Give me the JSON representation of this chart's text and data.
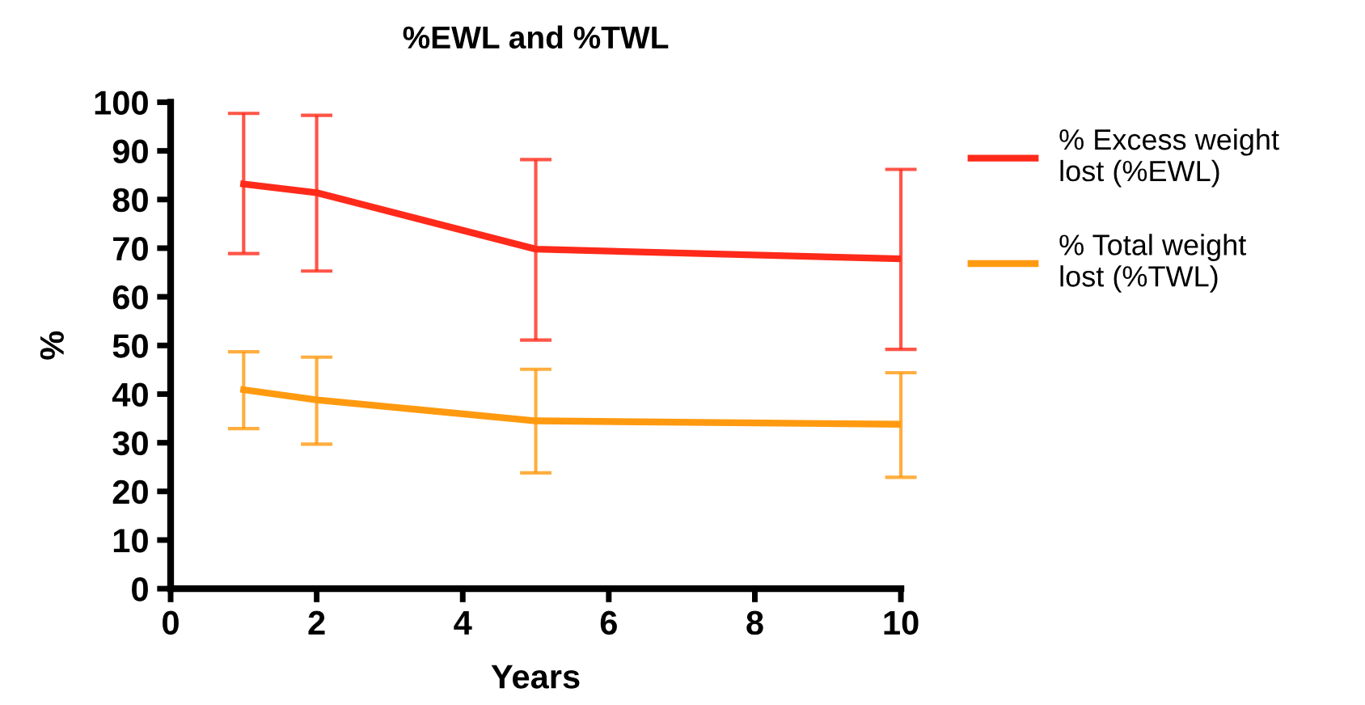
{
  "chart_data": {
    "type": "line",
    "title": "%EWL and %TWL",
    "xlabel": "Years",
    "ylabel": "%",
    "x": [
      1,
      2,
      5,
      10
    ],
    "series": [
      {
        "name": "% Excess weight\nlost (%EWL)",
        "color": "#ff2a1a",
        "values": [
          83.2,
          81.4,
          69.8,
          67.8
        ],
        "errors": [
          [
            68.9,
            97.7
          ],
          [
            65.3,
            97.3
          ],
          [
            51.1,
            88.2
          ],
          [
            49.2,
            86.2
          ]
        ]
      },
      {
        "name": "% Total weight\nlost (%TWL)",
        "color": "#ff9a10",
        "values": [
          40.9,
          38.8,
          34.5,
          33.8
        ],
        "errors": [
          [
            32.9,
            48.7
          ],
          [
            29.7,
            47.6
          ],
          [
            23.8,
            45.1
          ],
          [
            22.9,
            44.4
          ]
        ]
      }
    ],
    "xlim": [
      0,
      10
    ],
    "xticks": [
      0,
      2,
      4,
      6,
      8,
      10
    ],
    "ylim": [
      0,
      100
    ],
    "yticks": [
      0,
      10,
      20,
      30,
      40,
      50,
      60,
      70,
      80,
      90,
      100
    ],
    "grid": false,
    "legend": "right",
    "marker": "none",
    "line_style": "solid"
  }
}
